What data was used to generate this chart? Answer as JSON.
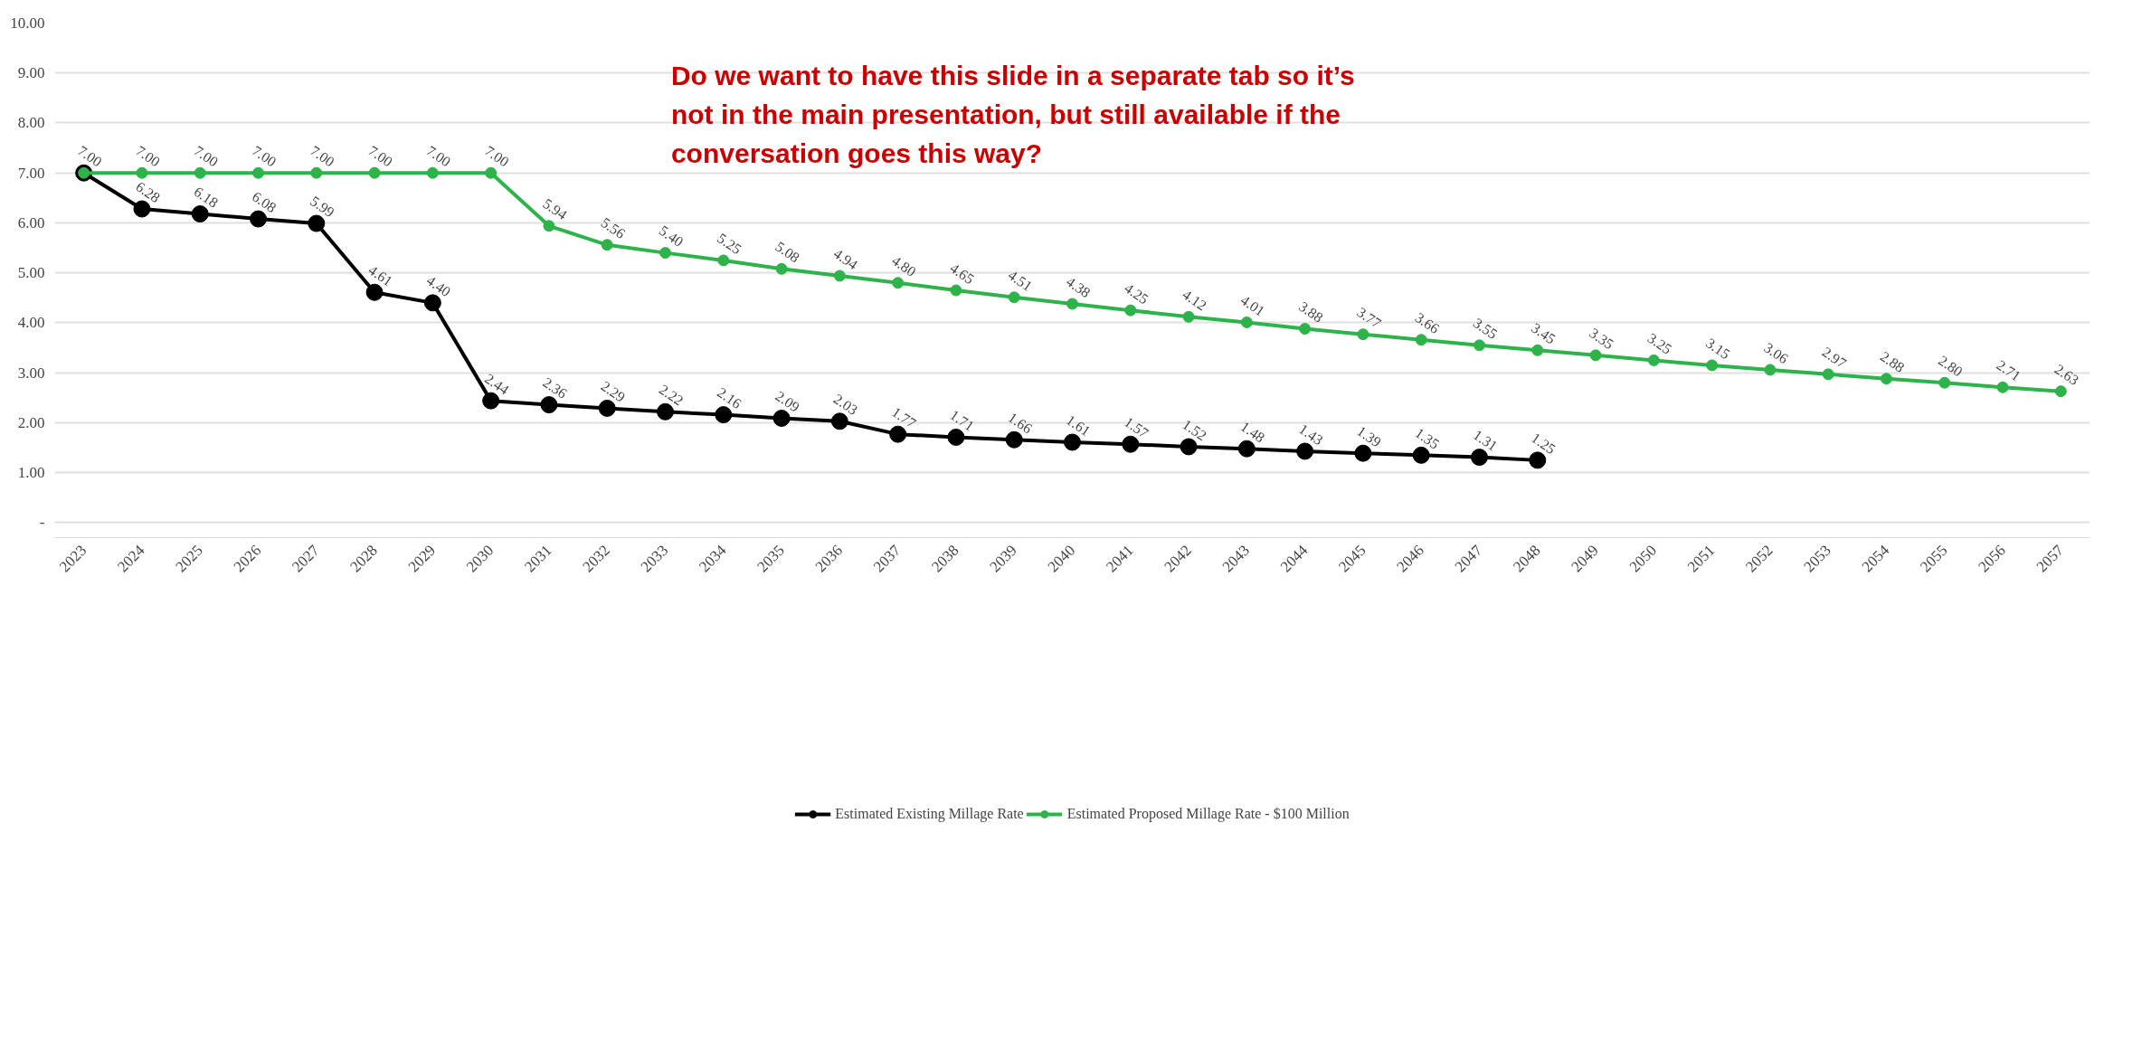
{
  "chart_data": {
    "type": "line",
    "categories": [
      "2023",
      "2024",
      "2025",
      "2026",
      "2027",
      "2028",
      "2029",
      "2030",
      "2031",
      "2032",
      "2033",
      "2034",
      "2035",
      "2036",
      "2037",
      "2038",
      "2039",
      "2040",
      "2041",
      "2042",
      "2043",
      "2044",
      "2045",
      "2046",
      "2047",
      "2048",
      "2049",
      "2050",
      "2051",
      "2052",
      "2053",
      "2054",
      "2055",
      "2056",
      "2057"
    ],
    "series": [
      {
        "name": "Estimated Existing Millage Rate",
        "color": "#000000",
        "values": [
          7.0,
          6.28,
          6.18,
          6.08,
          5.99,
          4.61,
          4.4,
          2.44,
          2.36,
          2.29,
          2.22,
          2.16,
          2.09,
          2.03,
          1.77,
          1.71,
          1.66,
          1.61,
          1.57,
          1.52,
          1.48,
          1.43,
          1.39,
          1.35,
          1.31,
          1.25,
          null,
          null,
          null,
          null,
          null,
          null,
          null,
          null,
          null
        ],
        "value_labels": [
          null,
          "6.28",
          "6.18",
          "6.08",
          "5.99",
          "4.61",
          "4.40",
          "2.44",
          "2.36",
          "2.29",
          "2.22",
          "2.16",
          "2.09",
          "2.03",
          "1.77",
          "1.71",
          "1.66",
          "1.61",
          "1.57",
          "1.52",
          "1.48",
          "1.43",
          "1.39",
          "1.35",
          "1.31",
          "1.25",
          null,
          null,
          null,
          null,
          null,
          null,
          null,
          null,
          null
        ]
      },
      {
        "name": "Estimated Proposed Millage Rate - $100 Million",
        "color": "#2db34a",
        "values": [
          7.0,
          7.0,
          7.0,
          7.0,
          7.0,
          7.0,
          7.0,
          7.0,
          5.94,
          5.56,
          5.4,
          5.25,
          5.08,
          4.94,
          4.8,
          4.65,
          4.51,
          4.38,
          4.25,
          4.12,
          4.01,
          3.88,
          3.77,
          3.66,
          3.55,
          3.45,
          3.35,
          3.25,
          3.15,
          3.06,
          2.97,
          2.88,
          2.8,
          2.71,
          2.63
        ],
        "value_labels": [
          "7.00",
          "7.00",
          "7.00",
          "7.00",
          "7.00",
          "7.00",
          "7.00",
          "7.00",
          "5.94",
          "5.56",
          "5.40",
          "5.25",
          "5.08",
          "4.94",
          "4.80",
          "4.65",
          "4.51",
          "4.38",
          "4.25",
          "4.12",
          "4.01",
          "3.88",
          "3.77",
          "3.66",
          "3.55",
          "3.45",
          "3.35",
          "3.25",
          "3.15",
          "3.06",
          "2.97",
          "2.88",
          "2.80",
          "2.71",
          "2.63"
        ]
      }
    ],
    "ylim": [
      -0.3,
      10
    ],
    "yticks": [
      {
        "value": 0,
        "label": "-"
      },
      {
        "value": 1,
        "label": "1.00"
      },
      {
        "value": 2,
        "label": "2.00"
      },
      {
        "value": 3,
        "label": "3.00"
      },
      {
        "value": 4,
        "label": "4.00"
      },
      {
        "value": 5,
        "label": "5.00"
      },
      {
        "value": 6,
        "label": "6.00"
      },
      {
        "value": 7,
        "label": "7.00"
      },
      {
        "value": 8,
        "label": "8.00"
      },
      {
        "value": 9,
        "label": "9.00"
      },
      {
        "value": 10,
        "label": "10.00"
      }
    ],
    "grid": "y",
    "legend": "bottom",
    "marker": "circle",
    "line_style": "solid",
    "annotations": [
      "Do we want to have this slide in a separate tab so it’s\nnot in the main presentation, but still available if the\nconversation goes this way?"
    ]
  }
}
